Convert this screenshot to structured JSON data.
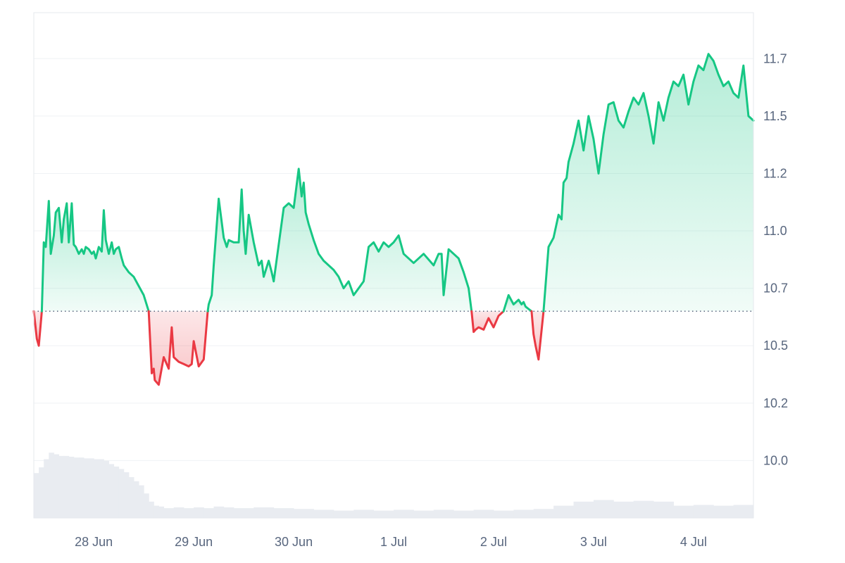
{
  "chart_data": {
    "type": "area",
    "baseline": 10.65,
    "colors": {
      "up_line": "#16c784",
      "down_line": "#ea3943",
      "up_fill": "#16c784",
      "down_fill": "#ea3943",
      "volume": "#e9ecf1",
      "grid": "#eff2f5",
      "baseline_dots": "#58667e"
    },
    "ylim": [
      9.75,
      11.95
    ],
    "xlim": [
      0,
      7.2
    ],
    "grid": true,
    "y_ticks": [
      {
        "value": 10.0,
        "label": "10.0"
      },
      {
        "value": 10.25,
        "label": "10.2"
      },
      {
        "value": 10.5,
        "label": "10.5"
      },
      {
        "value": 10.75,
        "label": "10.7"
      },
      {
        "value": 11.0,
        "label": "11.0"
      },
      {
        "value": 11.25,
        "label": "11.2"
      },
      {
        "value": 11.5,
        "label": "11.5"
      },
      {
        "value": 11.75,
        "label": "11.7"
      }
    ],
    "x_ticks": [
      {
        "value": 0.6,
        "label": "28 Jun"
      },
      {
        "value": 1.6,
        "label": "29 Jun"
      },
      {
        "value": 2.6,
        "label": "30 Jun"
      },
      {
        "value": 3.6,
        "label": "1 Jul"
      },
      {
        "value": 4.6,
        "label": "2 Jul"
      },
      {
        "value": 5.6,
        "label": "3 Jul"
      },
      {
        "value": 6.6,
        "label": "4 Jul"
      }
    ],
    "price": {
      "x": [
        0.0,
        0.03,
        0.05,
        0.08,
        0.1,
        0.12,
        0.15,
        0.17,
        0.2,
        0.22,
        0.25,
        0.28,
        0.3,
        0.33,
        0.35,
        0.38,
        0.4,
        0.42,
        0.45,
        0.48,
        0.5,
        0.52,
        0.55,
        0.58,
        0.6,
        0.62,
        0.65,
        0.68,
        0.7,
        0.72,
        0.75,
        0.78,
        0.8,
        0.82,
        0.85,
        0.88,
        0.9,
        0.95,
        1.0,
        1.05,
        1.1,
        1.15,
        1.18,
        1.2,
        1.21,
        1.25,
        1.3,
        1.35,
        1.38,
        1.4,
        1.45,
        1.5,
        1.55,
        1.58,
        1.6,
        1.65,
        1.7,
        1.74,
        1.75,
        1.78,
        1.8,
        1.85,
        1.9,
        1.93,
        1.95,
        2.0,
        2.05,
        2.08,
        2.1,
        2.12,
        2.15,
        2.2,
        2.25,
        2.28,
        2.3,
        2.35,
        2.38,
        2.4,
        2.45,
        2.5,
        2.55,
        2.6,
        2.65,
        2.68,
        2.7,
        2.72,
        2.75,
        2.8,
        2.85,
        2.9,
        3.0,
        3.05,
        3.1,
        3.15,
        3.2,
        3.3,
        3.35,
        3.4,
        3.45,
        3.5,
        3.55,
        3.6,
        3.65,
        3.7,
        3.75,
        3.8,
        3.9,
        4.0,
        4.05,
        4.08,
        4.1,
        4.15,
        4.2,
        4.25,
        4.3,
        4.35,
        4.38,
        4.4,
        4.42,
        4.45,
        4.5,
        4.55,
        4.6,
        4.65,
        4.7,
        4.75,
        4.8,
        4.85,
        4.88,
        4.9,
        4.92,
        4.95,
        4.98,
        5.0,
        5.02,
        5.05,
        5.1,
        5.15,
        5.2,
        5.25,
        5.28,
        5.3,
        5.33,
        5.35,
        5.4,
        5.45,
        5.5,
        5.55,
        5.6,
        5.65,
        5.7,
        5.75,
        5.8,
        5.85,
        5.9,
        5.95,
        6.0,
        6.05,
        6.1,
        6.15,
        6.2,
        6.25,
        6.3,
        6.35,
        6.4,
        6.45,
        6.5,
        6.55,
        6.6,
        6.65,
        6.7,
        6.75,
        6.8,
        6.85,
        6.9,
        6.95,
        7.0,
        7.05,
        7.1,
        7.15,
        7.2
      ],
      "y": [
        10.65,
        10.53,
        10.5,
        10.65,
        10.95,
        10.93,
        11.13,
        10.9,
        10.98,
        11.08,
        11.1,
        10.95,
        11.05,
        11.12,
        10.95,
        11.12,
        10.94,
        10.93,
        10.9,
        10.92,
        10.9,
        10.93,
        10.92,
        10.9,
        10.91,
        10.88,
        10.93,
        10.91,
        11.09,
        10.96,
        10.9,
        10.95,
        10.9,
        10.92,
        10.93,
        10.88,
        10.85,
        10.82,
        10.8,
        10.76,
        10.72,
        10.65,
        10.38,
        10.4,
        10.35,
        10.33,
        10.45,
        10.4,
        10.58,
        10.45,
        10.43,
        10.42,
        10.41,
        10.42,
        10.52,
        10.41,
        10.44,
        10.65,
        10.68,
        10.72,
        10.85,
        11.14,
        10.97,
        10.93,
        10.96,
        10.95,
        10.95,
        11.18,
        11.0,
        10.9,
        11.07,
        10.95,
        10.85,
        10.87,
        10.8,
        10.87,
        10.82,
        10.78,
        10.94,
        11.1,
        11.12,
        11.1,
        11.27,
        11.15,
        11.21,
        11.08,
        11.03,
        10.96,
        10.9,
        10.87,
        10.83,
        10.8,
        10.75,
        10.78,
        10.72,
        10.78,
        10.93,
        10.95,
        10.91,
        10.95,
        10.93,
        10.95,
        10.98,
        10.9,
        10.88,
        10.86,
        10.9,
        10.85,
        10.9,
        10.9,
        10.72,
        10.92,
        10.9,
        10.88,
        10.82,
        10.75,
        10.65,
        10.56,
        10.57,
        10.58,
        10.57,
        10.62,
        10.58,
        10.63,
        10.65,
        10.72,
        10.68,
        10.7,
        10.68,
        10.69,
        10.67,
        10.66,
        10.65,
        10.55,
        10.5,
        10.44,
        10.65,
        10.93,
        10.97,
        11.07,
        11.05,
        11.21,
        11.23,
        11.3,
        11.38,
        11.48,
        11.35,
        11.5,
        11.4,
        11.25,
        11.42,
        11.55,
        11.56,
        11.48,
        11.45,
        11.52,
        11.58,
        11.55,
        11.6,
        11.5,
        11.38,
        11.56,
        11.48,
        11.58,
        11.65,
        11.63,
        11.68,
        11.55,
        11.65,
        11.72,
        11.7,
        11.77,
        11.74,
        11.68,
        11.63,
        11.65,
        11.6,
        11.58,
        11.72,
        11.5,
        11.48
      ]
    },
    "volume": {
      "x": [
        0.0,
        0.05,
        0.1,
        0.15,
        0.2,
        0.25,
        0.3,
        0.35,
        0.4,
        0.45,
        0.5,
        0.55,
        0.6,
        0.65,
        0.7,
        0.75,
        0.8,
        0.85,
        0.9,
        0.95,
        1.0,
        1.05,
        1.1,
        1.15,
        1.2,
        1.25,
        1.3,
        1.4,
        1.5,
        1.6,
        1.7,
        1.8,
        1.9,
        2.0,
        2.2,
        2.4,
        2.6,
        2.8,
        3.0,
        3.2,
        3.4,
        3.6,
        3.8,
        4.0,
        4.2,
        4.4,
        4.6,
        4.8,
        5.0,
        5.2,
        5.4,
        5.6,
        5.8,
        6.0,
        6.2,
        6.4,
        6.6,
        6.8,
        7.0,
        7.2
      ],
      "y": [
        0.55,
        0.62,
        0.72,
        0.8,
        0.78,
        0.76,
        0.76,
        0.75,
        0.74,
        0.74,
        0.73,
        0.73,
        0.72,
        0.72,
        0.7,
        0.66,
        0.63,
        0.6,
        0.56,
        0.5,
        0.45,
        0.4,
        0.3,
        0.2,
        0.15,
        0.14,
        0.12,
        0.13,
        0.12,
        0.13,
        0.12,
        0.14,
        0.13,
        0.12,
        0.13,
        0.12,
        0.11,
        0.1,
        0.09,
        0.1,
        0.09,
        0.1,
        0.09,
        0.1,
        0.09,
        0.1,
        0.09,
        0.1,
        0.11,
        0.15,
        0.2,
        0.22,
        0.2,
        0.21,
        0.2,
        0.15,
        0.16,
        0.15,
        0.16,
        0.15
      ]
    }
  }
}
